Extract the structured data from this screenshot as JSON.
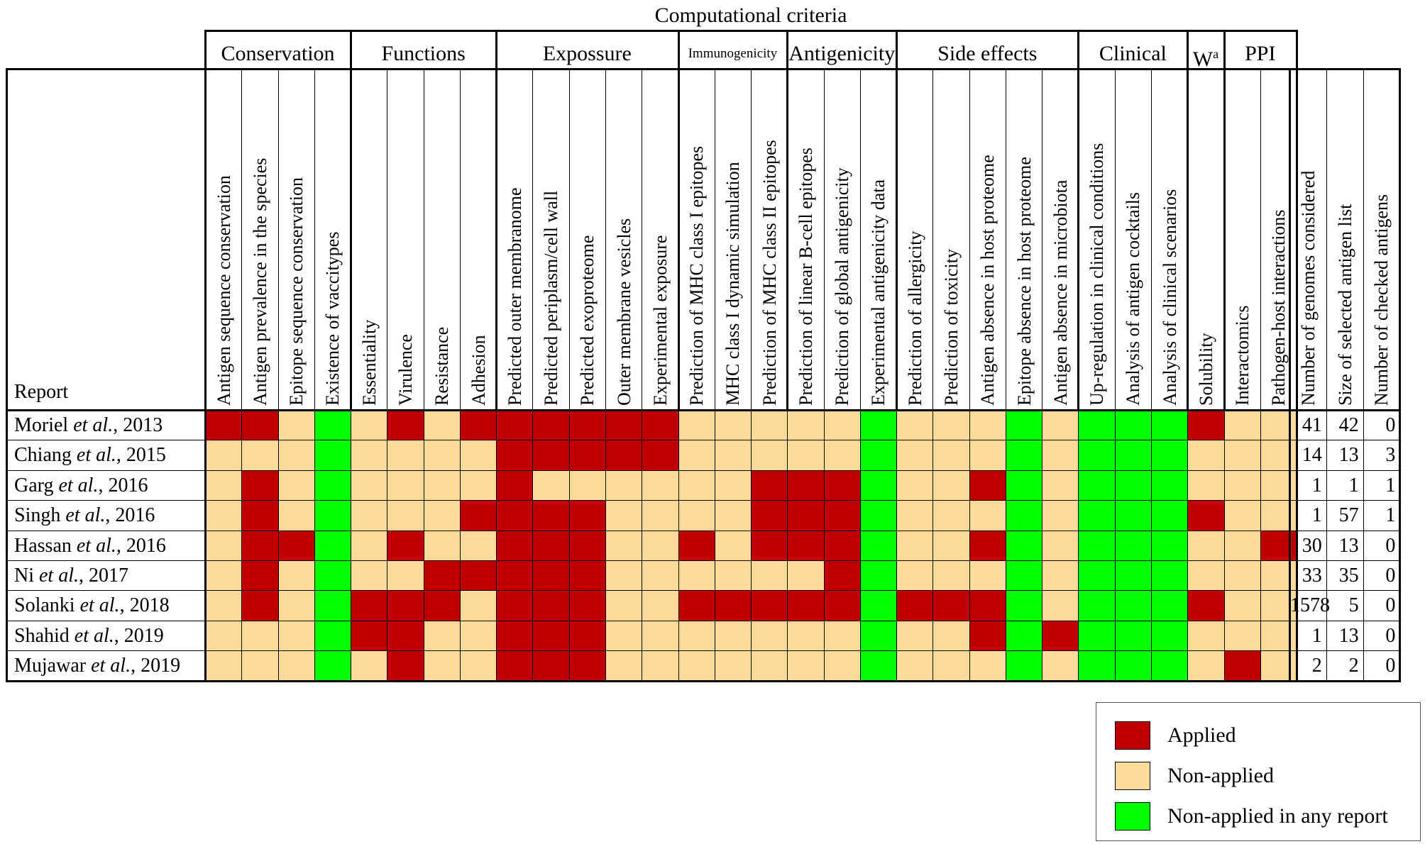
{
  "title": "Computational criteria",
  "report_header": "Report",
  "colors": {
    "applied": "#c00000",
    "non_applied": "#fadb9a",
    "non_applied_any": "#00ff00"
  },
  "groups": [
    {
      "label": "Conservation",
      "span": 4
    },
    {
      "label": "Functions",
      "span": 4
    },
    {
      "label": "Expossure",
      "span": 5
    },
    {
      "label": "Immunogenicity",
      "span": 3,
      "small": true
    },
    {
      "label": "Antigenicity",
      "span": 3
    },
    {
      "label": "Side effects",
      "span": 5
    },
    {
      "label": "Clinical",
      "span": 3
    },
    {
      "label": "W",
      "sup": "a",
      "span": 1
    },
    {
      "label": "PPI",
      "span": 2
    }
  ],
  "columns": [
    "Antigen sequence conservation",
    "Antigen prevalence in the species",
    "Epitope sequence conservation",
    "Existence of vaccitypes",
    "Essentiality",
    "Virulence",
    "Resistance",
    "Adhesion",
    "Predicted outer membranome",
    "Predicted periplasm/cell wall",
    "Predicted exoproteome",
    "Outer membrane vesicles",
    "Experimental exposure",
    "Prediction of MHC class I epitopes",
    "MHC class I dynamic simulation",
    "Prediction of MHC class II epitopes",
    "Prediction of linear B-cell epitopes",
    "Prediction of global antigenicity",
    "Experimental antigenicity data",
    "Prediction of allergicity",
    "Prediction of toxicity",
    "Antigen absence in host proteome",
    "Epitope absence in host proteome",
    "Antigen absence in microbiota",
    "Up-regulation in clinical conditions",
    "Analysis of antigen cocktails",
    "Analysis of clinical scenarios",
    "Solubility",
    "Interactomics",
    "Pathogen-host interactions"
  ],
  "stat_columns": [
    "Number of genomes considered",
    "Size of selected antigen list",
    "Number of checked antigens"
  ],
  "rows": [
    {
      "author": "Moriel",
      "etal": "et al.",
      "year": ", 2013",
      "cells": "AANGNANAAAAAANNNNNGNNNGNGGGANN",
      "stats": [
        "41",
        "42",
        "0"
      ]
    },
    {
      "author": "Chiang",
      "etal": "et al.",
      "year": ", 2015",
      "cells": "NNNGNNNNAAAAANNNNNGNNNGNGGGNNN",
      "stats": [
        "14",
        "13",
        "3"
      ]
    },
    {
      "author": "Garg",
      "etal": "et al.",
      "year": ", 2016",
      "cells": "NANGNNNNANNNNNNAAAGNNAGNGGGNNN",
      "stats": [
        "1",
        "1",
        "1"
      ]
    },
    {
      "author": "Singh",
      "etal": "et al.",
      "year": ", 2016",
      "cells": "NANGNNNAAAANNNNAAAGNNNGNGGGANN",
      "stats": [
        "1",
        "57",
        "1"
      ]
    },
    {
      "author": "Hassan",
      "etal": "et al.",
      "year": ", 2016",
      "cells": "NAAGNANNAAANNANAAAGNNAGNGGGNNA",
      "stats": [
        "30",
        "13",
        "0"
      ]
    },
    {
      "author": "Ni ",
      "etal": "et al.",
      "year": ", 2017",
      "cells": "NANGNNAAAAANNNNNNAGNNNGNGGGNNN",
      "stats": [
        "33",
        "35",
        "0"
      ]
    },
    {
      "author": "Solanki",
      "etal": "et al.",
      "year": ", 2018",
      "cells": "NANGAAANAAANNAAAAAGAAAGNGGGANN",
      "stats": [
        "1578",
        "5",
        "0"
      ]
    },
    {
      "author": "Shahid",
      "etal": "et al.",
      "year": ", 2019",
      "cells": "NNNGAANNAAANNNNNNNGNNAGAGGGNNN",
      "stats": [
        "1",
        "13",
        "0"
      ]
    },
    {
      "author": "Mujawar",
      "etal": "et al.",
      "year": ", 2019",
      "cells": "NNNGNANNAAANNNNNNNGNNNGNGGGNAN",
      "stats": [
        "2",
        "2",
        "0"
      ]
    }
  ],
  "legend": [
    {
      "key": "applied",
      "label": "Applied"
    },
    {
      "key": "non_applied",
      "label": "Non-applied"
    },
    {
      "key": "non_applied_any",
      "label": "Non-applied in any report"
    }
  ]
}
